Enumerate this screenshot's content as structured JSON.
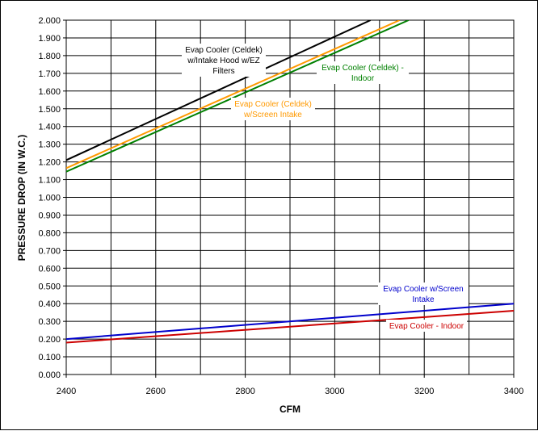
{
  "chart_data": {
    "type": "line",
    "title": "",
    "xlabel": "CFM",
    "ylabel": "PRESSURE DROP (IN W.C.)",
    "xlim": [
      2400,
      3400
    ],
    "ylim": [
      0,
      2.0
    ],
    "x_ticks": [
      "2400",
      "2600",
      "2800",
      "3000",
      "3200",
      "3400"
    ],
    "y_ticks": [
      "0.000",
      "0.100",
      "0.200",
      "0.300",
      "0.400",
      "0.500",
      "0.600",
      "0.700",
      "0.800",
      "0.900",
      "1.000",
      "1.100",
      "1.200",
      "1.300",
      "1.400",
      "1.500",
      "1.600",
      "1.700",
      "1.800",
      "1.900",
      "2.000"
    ],
    "grid": true,
    "series": [
      {
        "name": "Evap Cooler (Celdek) w/Intake Hood w/EZ Filters",
        "label_lines": [
          "Evap Cooler (Celdek)",
          "w/Intake Hood w/EZ",
          "Filters"
        ],
        "color": "#000000",
        "x": [
          2400,
          3080
        ],
        "y": [
          1.21,
          2.0
        ]
      },
      {
        "name": "Evap Cooler (Celdek) w/Screen Intake",
        "label_lines": [
          "Evap Cooler (Celdek)",
          "w/Screen Intake"
        ],
        "color": "#ff9900",
        "x": [
          2400,
          3145
        ],
        "y": [
          1.165,
          2.0
        ]
      },
      {
        "name": "Evap Cooler (Celdek) - Indoor",
        "label_lines": [
          "Evap Cooler (Celdek) -",
          "Indoor"
        ],
        "color": "#008000",
        "x": [
          2400,
          3165
        ],
        "y": [
          1.145,
          2.0
        ]
      },
      {
        "name": "Evap Cooler w/Screen Intake",
        "label_lines": [
          "Evap Cooler w/Screen",
          "Intake"
        ],
        "color": "#0000cc",
        "x": [
          2400,
          3400
        ],
        "y": [
          0.2,
          0.4
        ]
      },
      {
        "name": "Evap Cooler - Indoor",
        "label_lines": [
          "Evap Cooler - Indoor"
        ],
        "color": "#cc0000",
        "x": [
          2400,
          3400
        ],
        "y": [
          0.18,
          0.36
        ]
      }
    ]
  }
}
